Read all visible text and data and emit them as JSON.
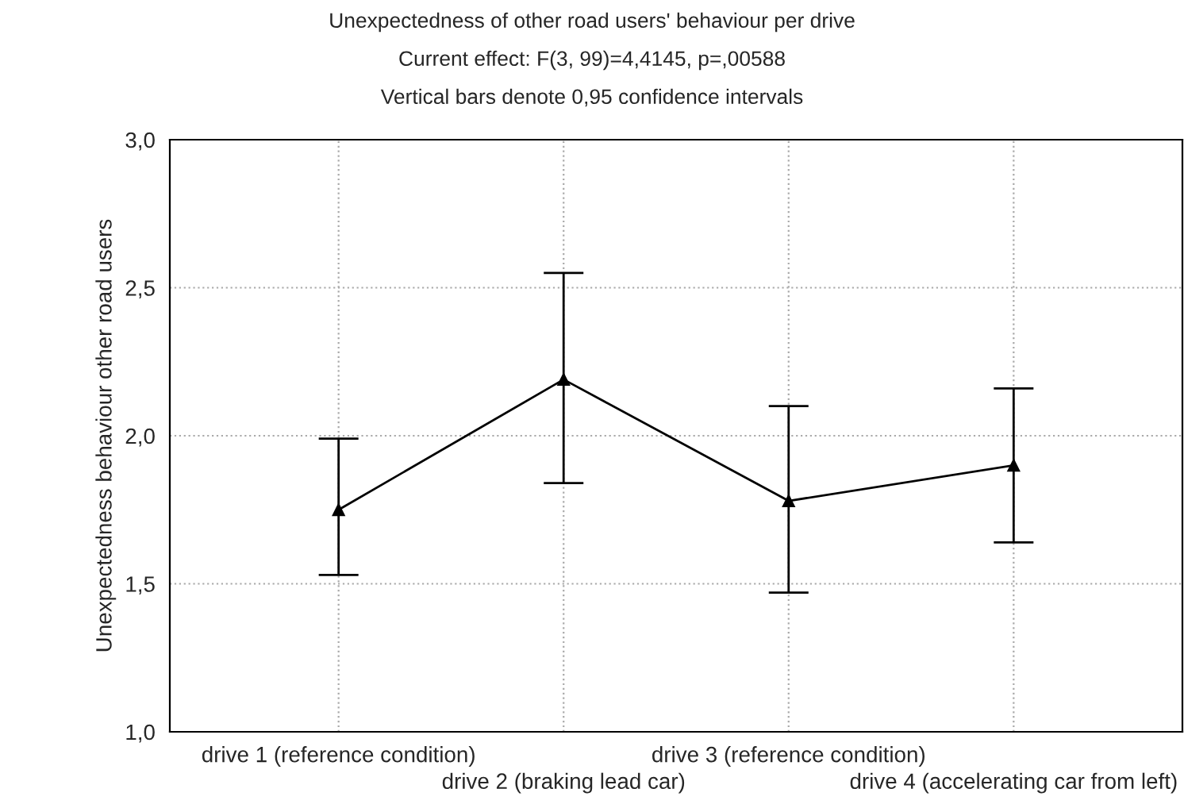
{
  "chart_data": {
    "type": "line",
    "title": "Unexpectedness of other road users' behaviour per drive",
    "subtitle": "Current effect: F(3, 99)=4,4145, p=,00588\nVertical bars denote 0,95 confidence intervals",
    "ylabel": "Unexpectedness behaviour other road users",
    "categories": [
      "drive 1 (reference condition)",
      "drive 2 (braking lead car)",
      "drive 3 (reference condition)",
      "drive 4 (accelerating car from left)"
    ],
    "series": [
      {
        "color": "#000000",
        "values": [
          1.75,
          2.19,
          1.78,
          1.9
        ],
        "errors": [
          [
            1.53,
            1.99
          ],
          [
            1.84,
            2.55
          ],
          [
            1.47,
            2.1
          ],
          [
            1.64,
            2.16
          ]
        ]
      }
    ],
    "ylim": [
      1.0,
      3.0
    ],
    "yticks": [
      {
        "value": 1.0,
        "label": "1,0"
      },
      {
        "value": 1.5,
        "label": "1,5"
      },
      {
        "value": 2.0,
        "label": "2,0"
      },
      {
        "value": 2.5,
        "label": "2,5"
      },
      {
        "value": 3.0,
        "label": "3,0"
      }
    ],
    "grid": true,
    "marker": "triangle",
    "line_style": "solid"
  }
}
